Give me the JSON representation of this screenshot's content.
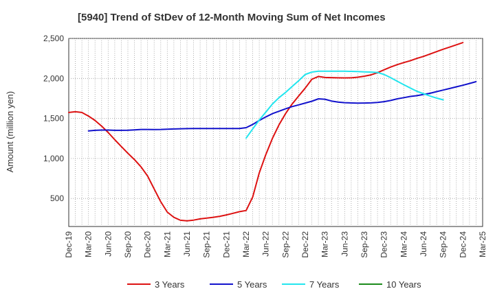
{
  "chart_data": {
    "type": "line",
    "title": "[5940]  Trend of StDev of 12-Month Moving Sum of Net Incomes",
    "ylabel": "Amount (million yen)",
    "xlabel": "",
    "ylim": [
      150,
      2500
    ],
    "yticks": [
      500,
      1000,
      1500,
      2000,
      2500
    ],
    "ytick_labels": [
      "500",
      "1,000",
      "1,500",
      "2,000",
      "2,500"
    ],
    "xticks": [
      "Dec-19",
      "Mar-20",
      "Jun-20",
      "Sep-20",
      "Dec-20",
      "Mar-21",
      "Jun-21",
      "Sep-21",
      "Dec-21",
      "Mar-22",
      "Jun-22",
      "Sep-22",
      "Dec-22",
      "Mar-23",
      "Jun-23",
      "Sep-23",
      "Dec-23",
      "Mar-24",
      "Jun-24",
      "Sep-24",
      "Dec-24",
      "Mar-25"
    ],
    "grid": true,
    "legend_position": "bottom",
    "series": [
      {
        "name": "3 Years",
        "color": "#dd1111",
        "start_index": 0,
        "values": [
          1575,
          1585,
          1575,
          1530,
          1475,
          1405,
          1325,
          1235,
          1150,
          1065,
          985,
          895,
          780,
          620,
          460,
          330,
          265,
          228,
          220,
          230,
          245,
          255,
          265,
          278,
          295,
          315,
          335,
          350,
          520,
          820,
          1050,
          1250,
          1420,
          1560,
          1680,
          1780,
          1880,
          1990,
          2025,
          2012,
          2010,
          2008,
          2007,
          2008,
          2015,
          2028,
          2045,
          2072,
          2108,
          2142,
          2172,
          2198,
          2222,
          2250,
          2275,
          2305,
          2335,
          2365,
          2392,
          2420,
          2448
        ]
      },
      {
        "name": "5 Years",
        "color": "#1111cc",
        "start_index": 3,
        "values": [
          1345,
          1352,
          1355,
          1355,
          1352,
          1352,
          1353,
          1358,
          1363,
          1363,
          1362,
          1363,
          1366,
          1369,
          1371,
          1373,
          1374,
          1374,
          1375,
          1375,
          1375,
          1374,
          1374,
          1374,
          1385,
          1425,
          1475,
          1520,
          1560,
          1590,
          1620,
          1648,
          1670,
          1693,
          1715,
          1745,
          1740,
          1718,
          1705,
          1697,
          1694,
          1692,
          1693,
          1695,
          1700,
          1710,
          1725,
          1745,
          1760,
          1775,
          1785,
          1800,
          1815,
          1835,
          1855,
          1875,
          1895,
          1915,
          1937,
          1960
        ]
      },
      {
        "name": "7 Years",
        "color": "#22e5ee",
        "start_index": 27,
        "values": [
          1255,
          1370,
          1480,
          1580,
          1680,
          1760,
          1825,
          1900,
          1972,
          2050,
          2080,
          2090,
          2090,
          2090,
          2090,
          2090,
          2088,
          2086,
          2082,
          2080,
          2075,
          2050,
          2010,
          1965,
          1922,
          1880,
          1840,
          1810,
          1780,
          1755,
          1732
        ]
      },
      {
        "name": "10 Years",
        "color": "#1a8a1a",
        "start_index": 0,
        "values": []
      }
    ]
  }
}
